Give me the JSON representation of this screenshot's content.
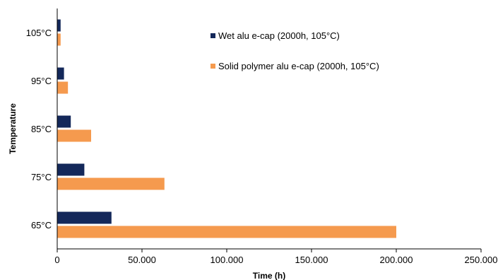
{
  "chart_data": {
    "type": "bar",
    "orientation": "horizontal",
    "categories": [
      "65°C",
      "75°C",
      "85°C",
      "95°C",
      "105°C"
    ],
    "series": [
      {
        "name": "Wet alu e-cap (2000h, 105°C)",
        "color": "#14285a",
        "values": [
          32000,
          16000,
          8000,
          4000,
          2000
        ]
      },
      {
        "name": "Solid polymer alu e-cap (2000h, 105°C)",
        "color": "#f59a4e",
        "values": [
          200000,
          63245,
          20000,
          6325,
          2000
        ]
      }
    ],
    "xlabel": "Time (h)",
    "ylabel": "Temperature",
    "xlim": [
      0,
      250000
    ],
    "xticks": [
      {
        "value": 0,
        "label": "0"
      },
      {
        "value": 50000,
        "label": "50.000"
      },
      {
        "value": 100000,
        "label": "100.000"
      },
      {
        "value": 150000,
        "label": "150.000"
      },
      {
        "value": 200000,
        "label": "200.000"
      },
      {
        "value": 250000,
        "label": "250.000"
      }
    ],
    "grid": false,
    "legend": "top-right"
  }
}
